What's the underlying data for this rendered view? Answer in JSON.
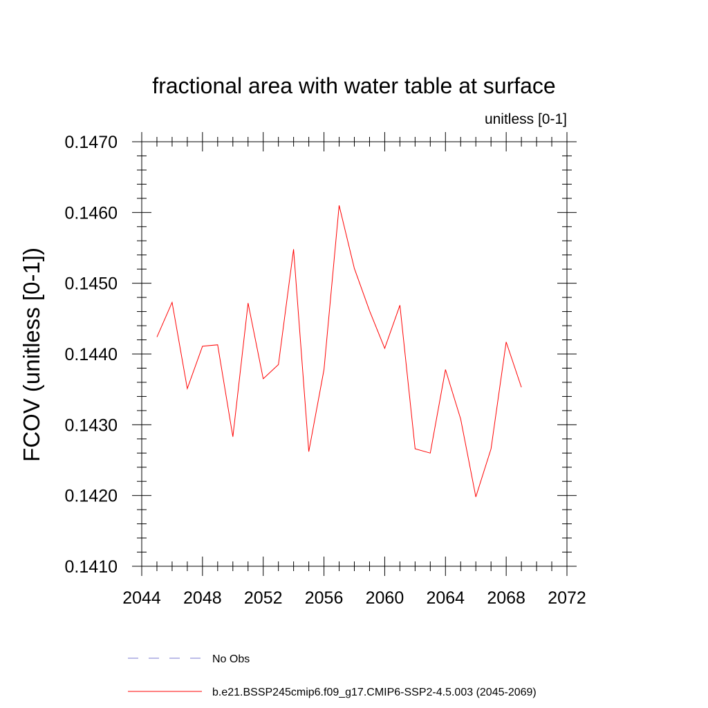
{
  "chart_data": {
    "type": "line",
    "title": "fractional area with water table at surface",
    "subtitle": "unitless [0-1]",
    "xlabel": "",
    "ylabel": "FCOV  (unitless [0-1])",
    "xlim": [
      2044,
      2072
    ],
    "ylim": [
      0.141,
      0.147
    ],
    "x_ticks": [
      "2044",
      "2048",
      "2052",
      "2056",
      "2060",
      "2064",
      "2068",
      "2072"
    ],
    "y_ticks": [
      "0.1410",
      "0.1420",
      "0.1430",
      "0.1440",
      "0.1450",
      "0.1460",
      "0.1470"
    ],
    "grid": false,
    "legend_position": "bottom",
    "series": [
      {
        "name": "b.e21.BSSP245cmip6.f09_g17.CMIP6-SSP2-4.5.003 (2045-2069)",
        "color": "#ff0000",
        "style": "solid",
        "x": [
          2045,
          2046,
          2047,
          2048,
          2049,
          2050,
          2051,
          2052,
          2053,
          2054,
          2055,
          2056,
          2057,
          2058,
          2059,
          2060,
          2061,
          2062,
          2063,
          2064,
          2065,
          2066,
          2067,
          2068,
          2069
        ],
        "values": [
          0.14424,
          0.14473,
          0.14351,
          0.14411,
          0.14413,
          0.14283,
          0.14472,
          0.14365,
          0.14385,
          0.14548,
          0.14262,
          0.14378,
          0.1461,
          0.14521,
          0.14461,
          0.14408,
          0.14469,
          0.14266,
          0.1426,
          0.14378,
          0.14308,
          0.14198,
          0.14266,
          0.14417,
          0.14353
        ]
      }
    ],
    "legend": [
      {
        "label": "No Obs",
        "color": "#7b7bd0",
        "style": "dashed"
      },
      {
        "label": "b.e21.BSSP245cmip6.f09_g17.CMIP6-SSP2-4.5.003 (2045-2069)",
        "color": "#ff0000",
        "style": "solid"
      }
    ]
  }
}
